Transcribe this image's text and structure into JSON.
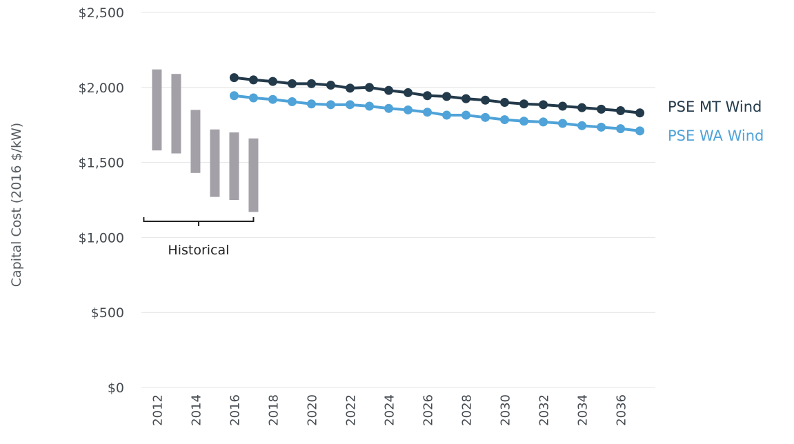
{
  "chart_data": {
    "type": "line",
    "title": "",
    "xlabel": "",
    "ylabel": "Capital Cost (2016 $/kW)",
    "ylim": [
      0,
      2500
    ],
    "y_ticks": [
      "$0",
      "$500",
      "$1,000",
      "$1,500",
      "$2,000",
      "$2,500"
    ],
    "y_tick_values": [
      0,
      500,
      1000,
      1500,
      2000,
      2500
    ],
    "x_ticks": [
      2012,
      2014,
      2016,
      2018,
      2020,
      2022,
      2024,
      2026,
      2028,
      2030,
      2032,
      2034,
      2036
    ],
    "x_tick_labels": [
      "2012",
      "2014",
      "2016",
      "2018",
      "2020",
      "2022",
      "2024",
      "2026",
      "2028",
      "2030",
      "2032",
      "2034",
      "2036"
    ],
    "xlim": [
      2011.2,
      2037.8
    ],
    "grid": true,
    "legend": "inline labels at right end of lines",
    "historical": {
      "label": "Historical",
      "bars": [
        {
          "year": 2012,
          "low": 1580,
          "high": 2120
        },
        {
          "year": 2013,
          "low": 1560,
          "high": 2090
        },
        {
          "year": 2014,
          "low": 1430,
          "high": 1850
        },
        {
          "year": 2015,
          "low": 1270,
          "high": 1720
        },
        {
          "year": 2016,
          "low": 1250,
          "high": 1700
        },
        {
          "year": 2017,
          "low": 1170,
          "high": 1660
        }
      ],
      "color": "#a4a0a8"
    },
    "series": [
      {
        "name": "PSE MT Wind",
        "color": "#233a4b",
        "x": [
          2016,
          2017,
          2018,
          2019,
          2020,
          2021,
          2022,
          2023,
          2024,
          2025,
          2026,
          2027,
          2028,
          2029,
          2030,
          2031,
          2032,
          2033,
          2034,
          2035,
          2036,
          2037
        ],
        "values": [
          2065,
          2050,
          2040,
          2025,
          2025,
          2015,
          1995,
          2000,
          1980,
          1965,
          1945,
          1940,
          1925,
          1915,
          1900,
          1890,
          1885,
          1875,
          1865,
          1855,
          1845,
          1830
        ]
      },
      {
        "name": "PSE WA Wind",
        "color": "#4fa3d8",
        "x": [
          2016,
          2017,
          2018,
          2019,
          2020,
          2021,
          2022,
          2023,
          2024,
          2025,
          2026,
          2027,
          2028,
          2029,
          2030,
          2031,
          2032,
          2033,
          2034,
          2035,
          2036,
          2037
        ],
        "values": [
          1945,
          1930,
          1920,
          1905,
          1890,
          1885,
          1885,
          1875,
          1860,
          1850,
          1835,
          1815,
          1815,
          1800,
          1785,
          1775,
          1770,
          1760,
          1745,
          1735,
          1725,
          1710
        ]
      }
    ]
  }
}
